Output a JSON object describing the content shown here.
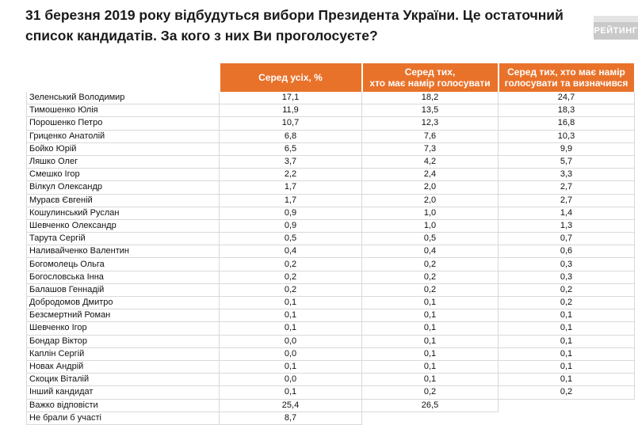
{
  "header": {
    "title_line1": "31 березня 2019 року відбудуться вибори Президента України. Це остаточний",
    "title_line2": "список кандидатів. За кого з них Ви проголосуєте?",
    "brand": "РЕЙТИНГ"
  },
  "table": {
    "col1_header": "Серед усіх, %",
    "col2_header_line1": "Серед тих,",
    "col2_header_line2": "хто має намір голосувати",
    "col3_header_line1": "Серед тих, хто має намір",
    "col3_header_line2": "голосувати та визначився",
    "rows": [
      {
        "name": "Зеленський Володимир",
        "all": "17,1",
        "voters": "18,2",
        "decided": "24,7"
      },
      {
        "name": "Тимошенко Юлія",
        "all": "11,9",
        "voters": "13,5",
        "decided": "18,3"
      },
      {
        "name": "Порошенко Петро",
        "all": "10,7",
        "voters": "12,3",
        "decided": "16,8"
      },
      {
        "name": "Гриценко Анатолій",
        "all": "6,8",
        "voters": "7,6",
        "decided": "10,3"
      },
      {
        "name": "Бойко Юрій",
        "all": "6,5",
        "voters": "7,3",
        "decided": "9,9"
      },
      {
        "name": "Ляшко Олег",
        "all": "3,7",
        "voters": "4,2",
        "decided": "5,7"
      },
      {
        "name": "Смешко Ігор",
        "all": "2,2",
        "voters": "2,4",
        "decided": "3,3"
      },
      {
        "name": "Вілкул Олександр",
        "all": "1,7",
        "voters": "2,0",
        "decided": "2,7"
      },
      {
        "name": "Мураєв Євгеній",
        "all": "1,7",
        "voters": "2,0",
        "decided": "2,7"
      },
      {
        "name": "Кошулинський Руслан",
        "all": "0,9",
        "voters": "1,0",
        "decided": "1,4"
      },
      {
        "name": "Шевченко Олександр",
        "all": "0,9",
        "voters": "1,0",
        "decided": "1,3"
      },
      {
        "name": "Тарута Сергій",
        "all": "0,5",
        "voters": "0,5",
        "decided": "0,7"
      },
      {
        "name": "Наливайченко Валентин",
        "all": "0,4",
        "voters": "0,4",
        "decided": "0,6"
      },
      {
        "name": "Богомолець Ольга",
        "all": "0,2",
        "voters": "0,2",
        "decided": "0,3"
      },
      {
        "name": "Богословська Інна",
        "all": "0,2",
        "voters": "0,2",
        "decided": "0,3"
      },
      {
        "name": "Балашов Геннадій",
        "all": "0,2",
        "voters": "0,2",
        "decided": "0,2"
      },
      {
        "name": "Добродомов Дмитро",
        "all": "0,1",
        "voters": "0,1",
        "decided": "0,2"
      },
      {
        "name": "Безсмертний Роман",
        "all": "0,1",
        "voters": "0,1",
        "decided": "0,1"
      },
      {
        "name": "Шевченко Ігор",
        "all": "0,1",
        "voters": "0,1",
        "decided": "0,1"
      },
      {
        "name": "Бондар Віктор",
        "all": "0,0",
        "voters": "0,1",
        "decided": "0,1"
      },
      {
        "name": "Каплін Сергій",
        "all": "0,0",
        "voters": "0,1",
        "decided": "0,1"
      },
      {
        "name": "Новак Андрій",
        "all": "0,1",
        "voters": "0,1",
        "decided": "0,1"
      },
      {
        "name": "Скоцик Віталій",
        "all": "0,0",
        "voters": "0,1",
        "decided": "0,1"
      },
      {
        "name": "Інший кандидат",
        "all": "0,1",
        "voters": "0,2",
        "decided": "0,2"
      },
      {
        "name": "Важко відповісти",
        "all": "25,4",
        "voters": "26,5",
        "decided": ""
      },
      {
        "name": "Не брали б участі",
        "all": "8,7",
        "voters": "",
        "decided": ""
      }
    ]
  },
  "colors": {
    "header_orange": "#e9722a",
    "brand_grey": "#c9c9c9"
  }
}
